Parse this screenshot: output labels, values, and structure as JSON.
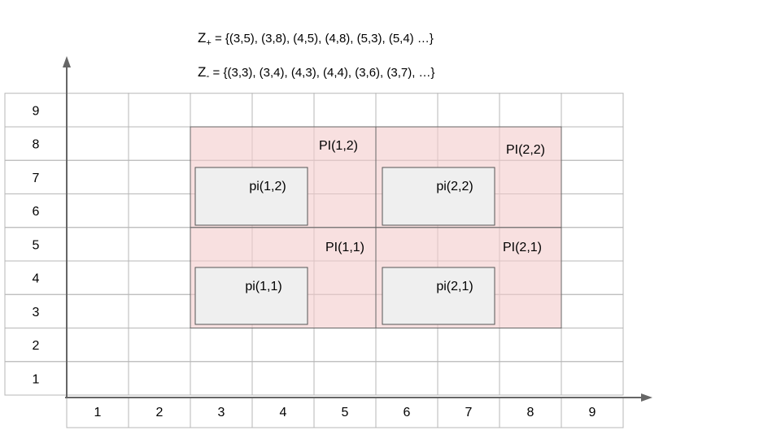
{
  "sets": {
    "z_plus": {
      "symbol": "Z",
      "subscript": "+",
      "text": " = {(3,5), (3,8), (4,5), (4,8), (5,3), (5,4) …}"
    },
    "z_minus": {
      "symbol": "Z",
      "subscript": "-",
      "text": " = {(3,3), (3,4), (4,3), (4,4), (3,6), (3,7), …}"
    }
  },
  "grid": {
    "columns": 9,
    "rows": 9,
    "x_ticks": [
      "1",
      "2",
      "3",
      "4",
      "5",
      "6",
      "7",
      "8",
      "9"
    ],
    "y_ticks": [
      "1",
      "2",
      "3",
      "4",
      "5",
      "6",
      "7",
      "8",
      "9"
    ]
  },
  "regions": [
    {
      "id": "PI(1,1)",
      "label": "PI(1,1)",
      "cells": {
        "x": [
          3,
          5
        ],
        "y": [
          3,
          5
        ]
      }
    },
    {
      "id": "PI(1,2)",
      "label": "PI(1,2)",
      "cells": {
        "x": [
          3,
          5
        ],
        "y": [
          6,
          8
        ]
      }
    },
    {
      "id": "PI(2,1)",
      "label": "PI(2,1)",
      "cells": {
        "x": [
          6,
          8
        ],
        "y": [
          3,
          5
        ]
      }
    },
    {
      "id": "PI(2,2)",
      "label": "PI(2,2)",
      "cells": {
        "x": [
          6,
          8
        ],
        "y": [
          6,
          8
        ]
      }
    }
  ],
  "inner_boxes": [
    {
      "id": "pi(1,1)",
      "label": "pi(1,1)"
    },
    {
      "id": "pi(1,2)",
      "label": "pi(1,2)"
    },
    {
      "id": "pi(2,1)",
      "label": "pi(2,1)"
    },
    {
      "id": "pi(2,2)",
      "label": "pi(2,2)"
    }
  ],
  "colors": {
    "grid_line": "#b7b7b7",
    "region_fill": "#f4cccc",
    "region_border": "#666666",
    "inner_fill": "#efefef",
    "inner_border": "#555555",
    "axis": "#666666",
    "text": "#000000"
  }
}
